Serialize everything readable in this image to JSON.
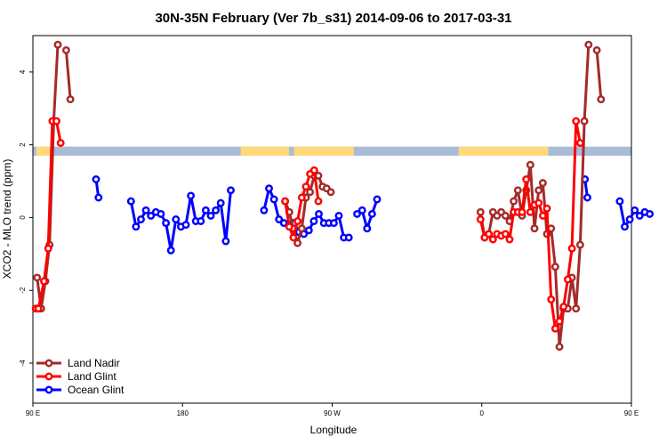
{
  "chart_data": {
    "type": "line",
    "title": "30N-35N February (Ver 7b_s31)   2014-09-06 to 2017-03-31",
    "xlabel": "Longitude",
    "ylabel": "XCO2 - MLO trend (ppm)",
    "xlim": [
      90,
      450
    ],
    "ylim": [
      -5.1,
      5.0
    ],
    "x_ticks": [
      {
        "value": 90,
        "label": "90 E"
      },
      {
        "value": 180,
        "label": "180"
      },
      {
        "value": 270,
        "label": "90 W"
      },
      {
        "value": 360,
        "label": "0"
      },
      {
        "value": 450,
        "label": "90 E"
      },
      {
        "value": 540,
        "label": "180"
      }
    ],
    "y_ticks": [
      {
        "value": -4,
        "label": "-4"
      },
      {
        "value": -2,
        "label": "-2"
      },
      {
        "value": 0,
        "label": "0"
      },
      {
        "value": 2,
        "label": "2"
      },
      {
        "value": 4,
        "label": "4"
      }
    ],
    "x_scale_note": "axis spans 90E to 180 (two revolutions), longitude continuous",
    "land_ocean_band": {
      "y_range": [
        1.7,
        1.95
      ],
      "ocean_color": "#a8bcd8",
      "land_color": "#ffd97a",
      "land_segments": [
        [
          92,
          101
        ],
        [
          215,
          244
        ],
        [
          247,
          283
        ],
        [
          346,
          400
        ],
        [
          452,
          461
        ]
      ]
    },
    "legend_position": "bottom-left",
    "series": [
      {
        "name": "Land Nadir",
        "color": "#a52a2a",
        "segments": [
          [
            [
              92.5,
              -1.65
            ],
            [
              95,
              -2.5
            ],
            [
              97.5,
              -1.75
            ],
            [
              100,
              -0.75
            ],
            [
              102.5,
              2.65
            ],
            [
              105,
              4.75
            ]
          ],
          [
            [
              110,
              4.6
            ],
            [
              112.5,
              3.25
            ]
          ],
          [
            [
              241.7,
              0.45
            ],
            [
              244.2,
              0.15
            ],
            [
              246.7,
              -0.3
            ],
            [
              249.2,
              -0.7
            ],
            [
              251.7,
              -0.3
            ],
            [
              254.2,
              0.55
            ],
            [
              256.7,
              0.7
            ],
            [
              259.2,
              1.15
            ],
            [
              261.7,
              1.15
            ],
            [
              264.2,
              0.85
            ],
            [
              266.7,
              0.8
            ],
            [
              269.2,
              0.7
            ]
          ],
          [
            [
              359.2,
              0.15
            ],
            [
              361.7,
              -0.55
            ],
            [
              364.2,
              -0.45
            ],
            [
              366.7,
              0.15
            ],
            [
              369.2,
              0.05
            ],
            [
              371.7,
              0.15
            ],
            [
              374.2,
              0.05
            ],
            [
              376.7,
              -0.1
            ],
            [
              379.2,
              0.45
            ],
            [
              381.7,
              0.75
            ],
            [
              384.2,
              0.05
            ],
            [
              386.7,
              0.75
            ],
            [
              389.2,
              1.45
            ],
            [
              391.7,
              -0.3
            ],
            [
              394.2,
              0.75
            ],
            [
              396.7,
              0.95
            ],
            [
              399.2,
              -0.45
            ],
            [
              401.7,
              -0.3
            ],
            [
              404.2,
              -1.35
            ],
            [
              406.7,
              -3.55
            ],
            [
              409.2,
              -2.5
            ],
            [
              411.7,
              -2.5
            ],
            [
              414.2,
              -1.65
            ],
            [
              416.7,
              -2.5
            ],
            [
              419.2,
              -0.75
            ],
            [
              421.7,
              2.65
            ],
            [
              424.2,
              4.75
            ]
          ],
          [
            [
              429.2,
              4.6
            ],
            [
              431.7,
              3.25
            ]
          ]
        ]
      },
      {
        "name": "Land Glint",
        "color": "#ff0000",
        "segments": [
          [
            [
              91.7,
              -2.5
            ],
            [
              93.3,
              -2.5
            ],
            [
              96.7,
              -1.75
            ],
            [
              99.2,
              -0.85
            ],
            [
              101.7,
              2.65
            ],
            [
              104.2,
              2.65
            ],
            [
              106.7,
              2.05
            ]
          ],
          [
            [
              241.7,
              0.45
            ],
            [
              244.2,
              -0.25
            ],
            [
              246.7,
              -0.55
            ],
            [
              249.2,
              -0.1
            ],
            [
              251.7,
              0.55
            ],
            [
              254.2,
              0.85
            ],
            [
              256.7,
              1.2
            ],
            [
              259.2,
              1.3
            ],
            [
              261.7,
              0.45
            ]
          ],
          [
            [
              359.2,
              -0.05
            ],
            [
              361.7,
              -0.55
            ],
            [
              364.2,
              -0.45
            ],
            [
              366.7,
              -0.6
            ],
            [
              369.2,
              -0.45
            ],
            [
              371.7,
              -0.5
            ],
            [
              374.2,
              -0.45
            ],
            [
              376.7,
              -0.6
            ],
            [
              379.2,
              0.15
            ],
            [
              381.7,
              0.15
            ],
            [
              384.2,
              0.15
            ],
            [
              386.7,
              1.05
            ],
            [
              389.2,
              0.15
            ],
            [
              391.7,
              0.35
            ],
            [
              394.2,
              0.4
            ],
            [
              396.7,
              0.05
            ],
            [
              399.2,
              0.25
            ],
            [
              401.7,
              -2.25
            ],
            [
              404.2,
              -3.05
            ],
            [
              406.7,
              -2.85
            ],
            [
              409.2,
              -2.45
            ],
            [
              411.7,
              -1.7
            ],
            [
              414.2,
              -0.85
            ],
            [
              416.7,
              2.65
            ],
            [
              419.2,
              2.05
            ]
          ]
        ]
      },
      {
        "name": "Ocean Glint",
        "color": "#0000ff",
        "segments": [
          [
            [
              128,
              1.05
            ],
            [
              129.5,
              0.55
            ]
          ],
          [
            [
              149,
              0.45
            ],
            [
              152,
              -0.25
            ],
            [
              155,
              -0.05
            ],
            [
              158,
              0.2
            ],
            [
              161,
              0.05
            ],
            [
              164,
              0.15
            ],
            [
              167,
              0.1
            ],
            [
              170,
              -0.15
            ],
            [
              173,
              -0.9
            ],
            [
              176,
              -0.05
            ],
            [
              179,
              -0.25
            ],
            [
              182,
              -0.2
            ],
            [
              185,
              0.6
            ],
            [
              188,
              -0.1
            ],
            [
              191,
              -0.1
            ],
            [
              194,
              0.2
            ],
            [
              197,
              0.05
            ],
            [
              200,
              0.2
            ],
            [
              203,
              0.4
            ],
            [
              206,
              -0.65
            ],
            [
              209,
              0.75
            ]
          ],
          [
            [
              229,
              0.2
            ],
            [
              232,
              0.8
            ],
            [
              235,
              0.5
            ],
            [
              238,
              -0.05
            ],
            [
              241,
              -0.15
            ],
            [
              244,
              -0.2
            ],
            [
              247,
              -0.15
            ],
            [
              250,
              -0.4
            ],
            [
              253,
              -0.45
            ],
            [
              256,
              -0.35
            ],
            [
              259,
              -0.1
            ],
            [
              262,
              0.1
            ],
            [
              265,
              -0.15
            ],
            [
              268,
              -0.15
            ],
            [
              271,
              -0.15
            ],
            [
              274,
              0.05
            ],
            [
              277,
              -0.55
            ],
            [
              280,
              -0.55
            ]
          ],
          [
            [
              285,
              0.1
            ],
            [
              288,
              0.2
            ],
            [
              291,
              -0.3
            ],
            [
              294,
              0.1
            ],
            [
              297,
              0.5
            ]
          ],
          [
            [
              422,
              1.05
            ],
            [
              423.5,
              0.55
            ]
          ],
          [
            [
              443,
              0.45
            ],
            [
              446,
              -0.25
            ],
            [
              449,
              -0.05
            ],
            [
              452,
              0.2
            ],
            [
              455,
              0.05
            ],
            [
              458,
              0.15
            ],
            [
              461,
              0.1
            ]
          ]
        ]
      }
    ]
  }
}
